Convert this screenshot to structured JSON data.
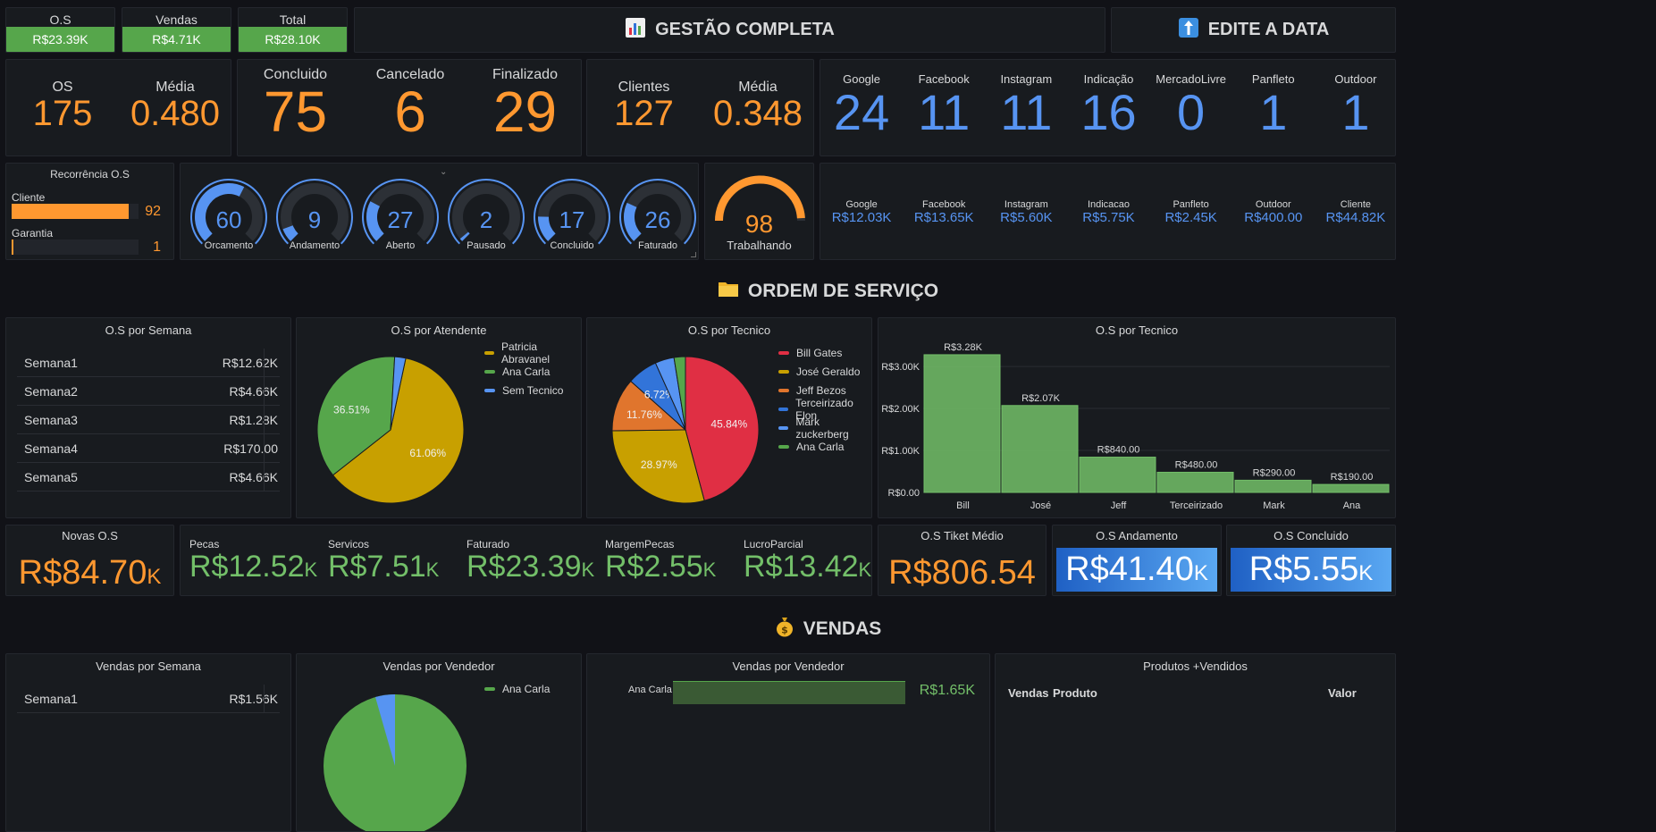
{
  "top_stats": [
    {
      "label": "O.S",
      "value": "R$23.39K"
    },
    {
      "label": "Vendas",
      "value": "R$4.71K"
    },
    {
      "label": "Total",
      "value": "R$28.10K"
    }
  ],
  "headers": {
    "gestao": "GESTÃO COMPLETA",
    "edite": "EDITE A DATA",
    "ordem": "ORDEM DE SERVIÇO",
    "vendas": "VENDAS"
  },
  "os_stats": [
    {
      "label": "OS",
      "value": "175"
    },
    {
      "label": "Média",
      "value": "0.480"
    }
  ],
  "status_stats": [
    {
      "label": "Concluido",
      "value": "75"
    },
    {
      "label": "Cancelado",
      "value": "6"
    },
    {
      "label": "Finalizado",
      "value": "29"
    }
  ],
  "client_stats": [
    {
      "label": "Clientes",
      "value": "127"
    },
    {
      "label": "Média",
      "value": "0.348"
    }
  ],
  "source_counts": [
    {
      "label": "Google",
      "value": "24"
    },
    {
      "label": "Facebook",
      "value": "11"
    },
    {
      "label": "Instagram",
      "value": "11"
    },
    {
      "label": "Indicação",
      "value": "16"
    },
    {
      "label": "MercadoLivre",
      "value": "0"
    },
    {
      "label": "Panfleto",
      "value": "1"
    },
    {
      "label": "Outdoor",
      "value": "1"
    }
  ],
  "recorrencia": {
    "title": "Recorrência O.S",
    "rows": [
      {
        "label": "Cliente",
        "value": "92",
        "fraction": 0.92
      },
      {
        "label": "Garantia",
        "value": "1",
        "fraction": 0.01
      }
    ]
  },
  "gauges": [
    {
      "label": "Orcamento",
      "value": "60",
      "fraction": 0.6
    },
    {
      "label": "Andamento",
      "value": "9",
      "fraction": 0.09
    },
    {
      "label": "Aberto",
      "value": "27",
      "fraction": 0.27
    },
    {
      "label": "Pausado",
      "value": "2",
      "fraction": 0.02
    },
    {
      "label": "Concluido",
      "value": "17",
      "fraction": 0.17
    },
    {
      "label": "Faturado",
      "value": "26",
      "fraction": 0.26
    }
  ],
  "trabalhando": {
    "label": "Trabalhando",
    "value": "98",
    "fraction": 0.98
  },
  "source_values": [
    {
      "label": "Google",
      "value": "R$12.03K"
    },
    {
      "label": "Facebook",
      "value": "R$13.65K"
    },
    {
      "label": "Instagram",
      "value": "R$5.60K"
    },
    {
      "label": "Indicacao",
      "value": "R$5.75K"
    },
    {
      "label": "Panfleto",
      "value": "R$2.45K"
    },
    {
      "label": "Outdoor",
      "value": "R$400.00"
    },
    {
      "label": "Cliente",
      "value": "R$44.82K"
    }
  ],
  "os_semana": {
    "title": "O.S por Semana",
    "rows": [
      {
        "label": "Semana1",
        "value": "R$12.62K"
      },
      {
        "label": "Semana2",
        "value": "R$4.66K"
      },
      {
        "label": "Semana3",
        "value": "R$1.28K"
      },
      {
        "label": "Semana4",
        "value": "R$170.00"
      },
      {
        "label": "Semana5",
        "value": "R$4.66K"
      }
    ]
  },
  "os_atendente": {
    "title": "O.S por Atendente"
  },
  "os_tecnico_pie": {
    "title": "O.S por Tecnico"
  },
  "os_tecnico_bar": {
    "title": "O.S por Tecnico"
  },
  "chart_data": [
    {
      "type": "pie",
      "title": "O.S por Atendente",
      "slices": [
        {
          "name": "Patricia Abravanel",
          "value": 61.06,
          "label": "61.06%",
          "color": "#c8a000"
        },
        {
          "name": "Ana Carla",
          "value": 36.51,
          "label": "36.51%",
          "color": "#56a64b"
        },
        {
          "name": "Sem Tecnico",
          "value": 2.43,
          "label": "",
          "color": "#5794f2"
        }
      ]
    },
    {
      "type": "pie",
      "title": "O.S por Tecnico",
      "slices": [
        {
          "name": "Bill Gates",
          "value": 45.84,
          "label": "45.84%",
          "color": "#e02f44"
        },
        {
          "name": "José Geraldo",
          "value": 28.97,
          "label": "28.97%",
          "color": "#c8a000"
        },
        {
          "name": "Jeff Bezos",
          "value": 11.76,
          "label": "11.76%",
          "color": "#e0752d"
        },
        {
          "name": "Terceirizado Elon",
          "value": 6.72,
          "label": "6.72%",
          "color": "#3274d9"
        },
        {
          "name": "Mark zuckerberg",
          "value": 4.2,
          "label": "",
          "color": "#5794f2"
        },
        {
          "name": "Ana Carla",
          "value": 2.51,
          "label": "",
          "color": "#56a64b"
        }
      ]
    },
    {
      "type": "bar",
      "title": "O.S por Tecnico",
      "categories": [
        "Bill",
        "José",
        "Jeff",
        "Terceirizado",
        "Mark",
        "Ana"
      ],
      "values": [
        3280,
        2070,
        840,
        480,
        290,
        190
      ],
      "labels": [
        "R$3.28K",
        "R$2.07K",
        "R$840.00",
        "R$480.00",
        "R$290.00",
        "R$190.00"
      ],
      "yticks": [
        {
          "v": 0,
          "t": "R$0.00"
        },
        {
          "v": 1000,
          "t": "R$1.00K"
        },
        {
          "v": 2000,
          "t": "R$2.00K"
        },
        {
          "v": 3000,
          "t": "R$3.00K"
        }
      ],
      "ylim": [
        0,
        3300
      ],
      "color": "#73bf69"
    },
    {
      "type": "bar",
      "title": "Vendas por Vendedor",
      "categories": [
        "Ana Carla"
      ],
      "values": [
        1650
      ],
      "labels": [
        "R$1.65K"
      ],
      "color": "#56a64b"
    }
  ],
  "novas_os": {
    "label": "Novas O.S",
    "value": "R$84.70",
    "unit": "K"
  },
  "fin_stats": [
    {
      "label": "Pecas",
      "value": "R$12.52",
      "unit": "K"
    },
    {
      "label": "Servicos",
      "value": "R$7.51",
      "unit": "K"
    },
    {
      "label": "Faturado",
      "value": "R$23.39",
      "unit": "K"
    },
    {
      "label": "MargemPecas",
      "value": "R$2.55",
      "unit": "K"
    },
    {
      "label": "LucroParcial",
      "value": "R$13.42",
      "unit": "K"
    }
  ],
  "tiket": {
    "label": "O.S Tiket Médio",
    "value": "R$806.54"
  },
  "andamento": {
    "label": "O.S Andamento",
    "value": "R$41.40",
    "unit": "K"
  },
  "concluido": {
    "label": "O.S Concluido",
    "value": "R$5.55",
    "unit": "K"
  },
  "vendas_semana": {
    "title": "Vendas por Semana",
    "rows": [
      {
        "label": "Semana1",
        "value": "R$1.56K"
      }
    ]
  },
  "vendas_vendedor_pie": {
    "title": "Vendas por Vendedor",
    "legend": "Ana Carla"
  },
  "vendas_vendedor_bar": {
    "title": "Vendas por Vendedor",
    "category": "Ana Carla",
    "value": "R$1.65K"
  },
  "produtos": {
    "title": "Produtos +Vendidos",
    "cols": [
      "Vendas",
      "Produto",
      "Valor"
    ]
  }
}
